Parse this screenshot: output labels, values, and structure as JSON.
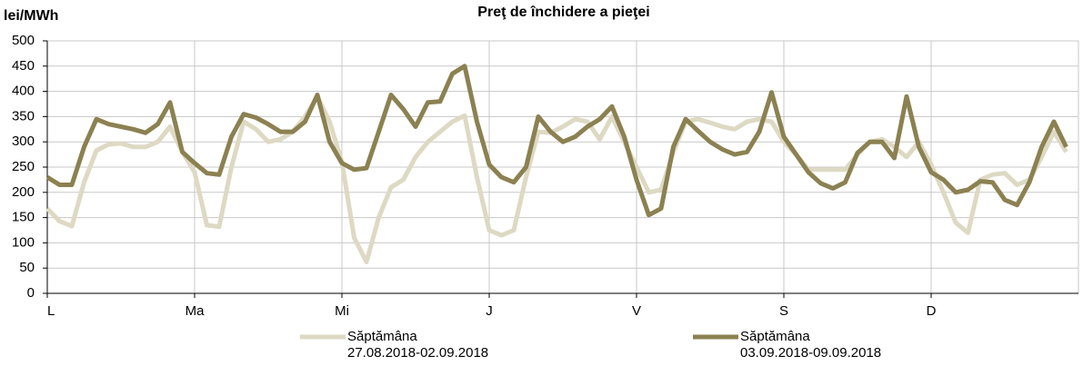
{
  "chart_data": {
    "type": "line",
    "title": "Preţ de închidere a pieţei",
    "y_label": "lei/MWh",
    "categories": [
      "L",
      null,
      null,
      null,
      null,
      null,
      null,
      null,
      null,
      null,
      null,
      null,
      "Ma",
      null,
      null,
      null,
      null,
      null,
      null,
      null,
      null,
      null,
      null,
      null,
      "Mi",
      null,
      null,
      null,
      null,
      null,
      null,
      null,
      null,
      null,
      null,
      null,
      "J",
      null,
      null,
      null,
      null,
      null,
      null,
      null,
      null,
      null,
      null,
      null,
      "V",
      null,
      null,
      null,
      null,
      null,
      null,
      null,
      null,
      null,
      null,
      null,
      "S",
      null,
      null,
      null,
      null,
      null,
      null,
      null,
      null,
      null,
      null,
      null,
      "D",
      null,
      null,
      null,
      null,
      null,
      null,
      null,
      null,
      null,
      null,
      null
    ],
    "series": [
      {
        "name": "Săptămâna\n27.08.2018-02.09.2018",
        "color": "#ddd9c3",
        "values": [
          168,
          143,
          133,
          220,
          283,
          295,
          297,
          290,
          290,
          300,
          330,
          280,
          240,
          135,
          132,
          250,
          340,
          325,
          300,
          305,
          320,
          350,
          390,
          340,
          260,
          110,
          62,
          150,
          210,
          225,
          270,
          300,
          320,
          340,
          352,
          230,
          125,
          115,
          125,
          230,
          320,
          318,
          330,
          345,
          340,
          305,
          350,
          300,
          250,
          200,
          205,
          280,
          340,
          345,
          338,
          330,
          325,
          340,
          345,
          340,
          300,
          275,
          245,
          245,
          245,
          245,
          275,
          300,
          305,
          290,
          270,
          300,
          255,
          200,
          140,
          120,
          225,
          235,
          238,
          215,
          225,
          270,
          320,
          280
        ]
      },
      {
        "name": "Săptămâna\n03.09.2018-09.09.2018",
        "color": "#8b8151",
        "values": [
          230,
          215,
          215,
          290,
          345,
          335,
          330,
          325,
          318,
          335,
          378,
          280,
          258,
          238,
          235,
          310,
          355,
          348,
          335,
          320,
          320,
          340,
          393,
          300,
          258,
          245,
          248,
          320,
          393,
          365,
          330,
          378,
          380,
          435,
          450,
          340,
          255,
          230,
          220,
          250,
          350,
          320,
          300,
          310,
          330,
          345,
          370,
          310,
          225,
          155,
          168,
          290,
          345,
          322,
          300,
          285,
          275,
          280,
          320,
          398,
          310,
          275,
          240,
          218,
          208,
          220,
          278,
          300,
          300,
          268,
          390,
          290,
          240,
          225,
          200,
          205,
          222,
          220,
          185,
          175,
          220,
          290,
          340,
          290
        ]
      }
    ],
    "ylim": [
      0,
      500
    ],
    "yticks": [
      0,
      50,
      100,
      150,
      200,
      250,
      300,
      350,
      400,
      450,
      500
    ],
    "grid": true
  }
}
